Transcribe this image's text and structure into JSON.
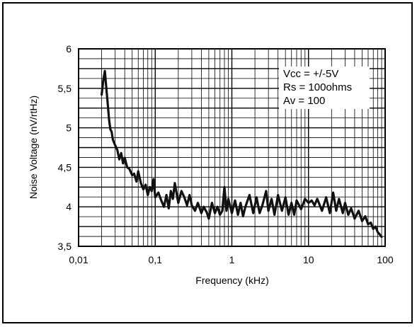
{
  "chart_data": {
    "type": "line",
    "title": "",
    "xlabel": "Frequency (kHz)",
    "ylabel": "Noise Voltage (nV/rtHz)",
    "x_scale": "log",
    "xlim": [
      0.01,
      100
    ],
    "ylim": [
      3.5,
      6
    ],
    "grid": true,
    "x_ticks": [
      {
        "value": 0.01,
        "label": "0,01"
      },
      {
        "value": 0.1,
        "label": "0,1"
      },
      {
        "value": 1,
        "label": "1"
      },
      {
        "value": 10,
        "label": "10"
      },
      {
        "value": 100,
        "label": "100"
      }
    ],
    "y_ticks": [
      {
        "value": 3.5,
        "label": "3,5"
      },
      {
        "value": 4,
        "label": "4"
      },
      {
        "value": 4.5,
        "label": "4,5"
      },
      {
        "value": 5,
        "label": "5"
      },
      {
        "value": 5.5,
        "label": "5,5"
      },
      {
        "value": 6,
        "label": "6"
      }
    ],
    "annotations": [
      "Vcc = +/-5V",
      "Rs = 100ohms",
      "Av =  100"
    ],
    "series": [
      {
        "x": [
          0.02,
          0.021,
          0.022,
          0.023,
          0.024,
          0.025,
          0.026,
          0.027,
          0.028,
          0.03,
          0.032,
          0.034,
          0.036,
          0.038,
          0.04,
          0.043,
          0.046,
          0.05,
          0.053,
          0.057,
          0.06,
          0.065,
          0.07,
          0.075,
          0.08,
          0.085,
          0.09,
          0.095,
          0.1,
          0.11,
          0.12,
          0.13,
          0.14,
          0.15,
          0.16,
          0.17,
          0.18,
          0.2,
          0.22,
          0.24,
          0.26,
          0.28,
          0.3,
          0.33,
          0.36,
          0.4,
          0.43,
          0.47,
          0.5,
          0.55,
          0.6,
          0.65,
          0.7,
          0.75,
          0.8,
          0.85,
          0.9,
          1.0,
          1.1,
          1.2,
          1.3,
          1.4,
          1.5,
          1.7,
          1.9,
          2.1,
          2.3,
          2.5,
          2.8,
          3.0,
          3.3,
          3.6,
          4.0,
          4.5,
          5.0,
          5.5,
          6.0,
          6.5,
          7.0,
          8.0,
          9.0,
          10,
          11,
          12,
          13,
          15,
          17,
          19,
          21,
          23,
          25,
          28,
          30,
          33,
          36,
          40,
          45,
          50,
          55,
          60,
          65,
          70,
          75,
          80,
          85,
          90
        ],
        "y": [
          5.42,
          5.6,
          5.72,
          5.5,
          5.3,
          5.1,
          4.98,
          4.95,
          4.85,
          4.78,
          4.72,
          4.6,
          4.68,
          4.55,
          4.62,
          4.5,
          4.48,
          4.4,
          4.42,
          4.32,
          4.45,
          4.3,
          4.22,
          4.28,
          4.15,
          4.25,
          4.2,
          4.35,
          4.12,
          4.18,
          4.08,
          4.0,
          4.15,
          3.98,
          4.2,
          4.1,
          4.3,
          4.05,
          4.2,
          4.12,
          4.02,
          4.15,
          4.02,
          3.95,
          4.05,
          3.92,
          4.0,
          3.93,
          3.85,
          4.05,
          3.92,
          4.0,
          3.9,
          3.95,
          4.25,
          3.95,
          4.1,
          3.92,
          4.08,
          3.9,
          4.05,
          3.88,
          4.0,
          4.15,
          3.92,
          4.12,
          3.92,
          4.02,
          4.2,
          3.95,
          4.1,
          3.9,
          4.15,
          3.95,
          4.12,
          3.9,
          4.05,
          3.9,
          4.08,
          3.97,
          4.1,
          4.05,
          4.08,
          4.02,
          4.1,
          3.95,
          4.12,
          3.92,
          4.18,
          3.95,
          4.1,
          3.92,
          4.05,
          3.9,
          3.98,
          3.85,
          3.95,
          3.82,
          3.88,
          3.78,
          3.8,
          3.72,
          3.75,
          3.68,
          3.65,
          3.62
        ]
      }
    ]
  }
}
